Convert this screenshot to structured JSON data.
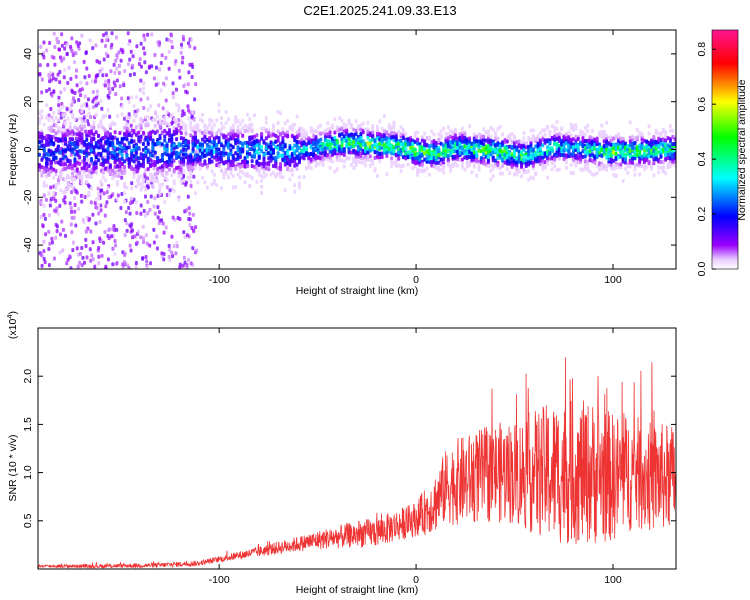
{
  "title": "C2E1.2025.241.09.33.E13",
  "chart_data": [
    {
      "type": "heatmap",
      "name": "spectrogram",
      "xlabel": "Height of straight line (km)",
      "ylabel": "Frequency (Hz)",
      "xlim": [
        -192,
        132
      ],
      "ylim": [
        -50,
        50
      ],
      "x_ticks": [
        -100,
        0,
        100
      ],
      "y_ticks": [
        -40,
        -20,
        0,
        20,
        40
      ],
      "colorbar": {
        "label": "Normalized spectral amplitude",
        "range": [
          0.0,
          0.87
        ],
        "ticks": [
          0.0,
          0.2,
          0.4,
          0.6,
          0.8
        ],
        "colormap": [
          "#ffffff",
          "#9900ff",
          "#0000ff",
          "#00ffff",
          "#00ff00",
          "#ffff00",
          "#ff0000",
          "#ff1493"
        ]
      },
      "ridge_center": [
        {
          "x": -190,
          "y": 0
        },
        {
          "x": -120,
          "y": 1
        },
        {
          "x": -60,
          "y": 0
        },
        {
          "x": -45,
          "y": 3
        },
        {
          "x": -35,
          "y": 4
        },
        {
          "x": -25,
          "y": 3
        },
        {
          "x": -10,
          "y": 2
        },
        {
          "x": 0,
          "y": 0
        },
        {
          "x": 10,
          "y": -1
        },
        {
          "x": 20,
          "y": 2
        },
        {
          "x": 30,
          "y": 1
        },
        {
          "x": 40,
          "y": 0
        },
        {
          "x": 55,
          "y": -2
        },
        {
          "x": 70,
          "y": 2
        },
        {
          "x": 95,
          "y": 0
        },
        {
          "x": 110,
          "y": 0
        },
        {
          "x": 132,
          "y": 1
        }
      ],
      "ridge_peak_amplitude": [
        {
          "x": -190,
          "a": 0.25
        },
        {
          "x": -120,
          "a": 0.3
        },
        {
          "x": -60,
          "a": 0.35
        },
        {
          "x": -40,
          "a": 0.5
        },
        {
          "x": -30,
          "a": 0.55
        },
        {
          "x": -10,
          "a": 0.5
        },
        {
          "x": 0,
          "a": 0.55
        },
        {
          "x": 20,
          "a": 0.45
        },
        {
          "x": 35,
          "a": 0.55
        },
        {
          "x": 55,
          "a": 0.5
        },
        {
          "x": 80,
          "a": 0.35
        },
        {
          "x": 100,
          "a": 0.55
        },
        {
          "x": 132,
          "a": 0.45
        }
      ]
    },
    {
      "type": "line",
      "name": "snr",
      "xlabel": "Height of straight line (km)",
      "ylabel": "SNR (10 * v/v)",
      "y_multiplier": "(x10",
      "y_multiplier_exp": "4",
      "y_multiplier_close": ")",
      "xlim": [
        -192,
        132
      ],
      "ylim": [
        0,
        2.5
      ],
      "x_ticks": [
        -100,
        0,
        100
      ],
      "y_ticks": [
        0.5,
        1.0,
        1.5,
        2.0
      ],
      "color": "#ee3333",
      "series": [
        {
          "name": "SNR",
          "x": [
            -190,
            -160,
            -130,
            -110,
            -100,
            -90,
            -80,
            -70,
            -60,
            -50,
            -40,
            -30,
            -20,
            -10,
            0,
            5,
            10,
            15,
            20,
            30,
            40,
            50,
            60,
            70,
            80,
            90,
            100,
            110,
            120,
            132
          ],
          "y": [
            0.03,
            0.03,
            0.04,
            0.06,
            0.1,
            0.14,
            0.18,
            0.22,
            0.26,
            0.3,
            0.33,
            0.36,
            0.38,
            0.45,
            0.52,
            0.6,
            0.7,
            0.85,
            0.9,
            0.95,
            1.0,
            1.0,
            1.0,
            1.0,
            1.0,
            1.0,
            0.95,
            1.0,
            0.95,
            0.95
          ]
        }
      ],
      "spread": [
        {
          "x": -190,
          "v": 0.015
        },
        {
          "x": -100,
          "v": 0.03
        },
        {
          "x": -60,
          "v": 0.08
        },
        {
          "x": -30,
          "v": 0.14
        },
        {
          "x": 0,
          "v": 0.18
        },
        {
          "x": 20,
          "v": 0.45
        },
        {
          "x": 50,
          "v": 0.55
        },
        {
          "x": 70,
          "v": 0.75
        },
        {
          "x": 90,
          "v": 0.75
        },
        {
          "x": 110,
          "v": 0.6
        },
        {
          "x": 132,
          "v": 0.55
        }
      ]
    }
  ]
}
